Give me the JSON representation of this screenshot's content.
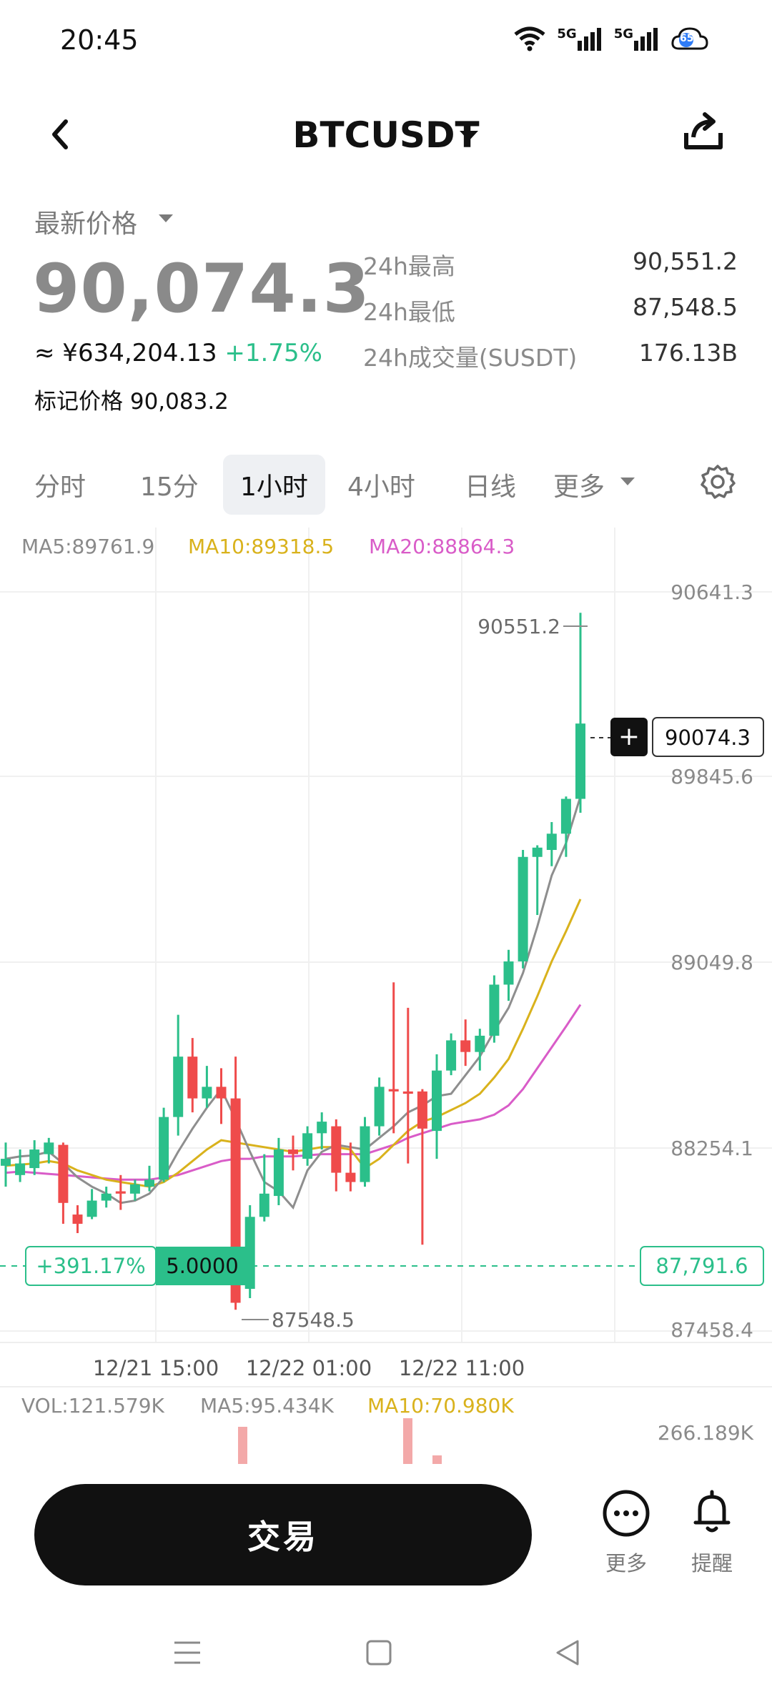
{
  "status_bar": {
    "time": "20:45",
    "net1": "5G",
    "net2": "5G",
    "cloud_badge": "65"
  },
  "header": {
    "title": "BTCUSDT"
  },
  "price": {
    "latest_label": "最新价格",
    "last_price": "90,074.3",
    "cny_prefix": "≈ ¥",
    "cny_value": "634,204.13",
    "change_pct": "+1.75%",
    "mark_price": "标记价格 90,083.2",
    "stats": [
      {
        "label": "24h最高",
        "value": "90,551.2"
      },
      {
        "label": "24h最低",
        "value": "87,548.5"
      },
      {
        "label": "24h成交量(SUSDT)",
        "value": "176.13B"
      }
    ]
  },
  "interval_tabs": [
    {
      "label": "分时"
    },
    {
      "label": "15分"
    },
    {
      "label": "1小时",
      "active": true
    },
    {
      "label": "4小时"
    },
    {
      "label": "日线"
    },
    {
      "label": "更多"
    }
  ],
  "indicators": {
    "ma5": "MA5:89761.9",
    "ma10": "MA10:89318.5",
    "ma20": "MA20:88864.3"
  },
  "chart_labels": {
    "y_ticks": [
      "90641.3",
      "89845.6",
      "89049.8",
      "88254.1",
      "87458.4"
    ],
    "high_label": "90551.2",
    "low_label": "87548.5",
    "last_tag": "90074.3",
    "position_pnl": "+391.17%",
    "position_size": "5.0000",
    "entry_price": "87,791.6",
    "x_ticks": [
      "12/21 15:00",
      "12/22 01:00",
      "12/22 11:00"
    ],
    "vol_label": "VOL:121.579K",
    "vol_ma5": "MA5:95.434K",
    "vol_ma10": "MA10:70.980K",
    "vol_axis": "266.189K"
  },
  "colors": {
    "up": "#2bbf8a",
    "down": "#ef4b4b",
    "ma5": "#8e8e8e",
    "ma10": "#d9b21c",
    "ma20": "#d95cc8"
  },
  "chart_data": {
    "type": "candlestick",
    "y_range": [
      87458.4,
      90641.3
    ],
    "x_ticks": [
      "12/21 15:00",
      "12/22 01:00",
      "12/22 11:00"
    ],
    "candles": [
      {
        "o": 88170,
        "h": 88270,
        "c": 88200,
        "l": 88080
      },
      {
        "o": 88130,
        "h": 88240,
        "c": 88180,
        "l": 88100
      },
      {
        "o": 88160,
        "h": 88280,
        "c": 88240,
        "l": 88130
      },
      {
        "o": 88220,
        "h": 88290,
        "c": 88270,
        "l": 88180
      },
      {
        "o": 88260,
        "h": 88270,
        "c": 88010,
        "l": 87920
      },
      {
        "o": 87960,
        "h": 88000,
        "c": 87920,
        "l": 87880
      },
      {
        "o": 87950,
        "h": 88070,
        "c": 88020,
        "l": 87940
      },
      {
        "o": 88020,
        "h": 88080,
        "c": 88050,
        "l": 87990
      },
      {
        "o": 88060,
        "h": 88130,
        "c": 88050,
        "l": 87980
      },
      {
        "o": 88050,
        "h": 88110,
        "c": 88090,
        "l": 88020
      },
      {
        "o": 88080,
        "h": 88170,
        "c": 88110,
        "l": 88060
      },
      {
        "o": 88110,
        "h": 88420,
        "c": 88380,
        "l": 88100
      },
      {
        "o": 88380,
        "h": 88820,
        "c": 88640,
        "l": 88300
      },
      {
        "o": 88640,
        "h": 88720,
        "c": 88460,
        "l": 88400
      },
      {
        "o": 88460,
        "h": 88600,
        "c": 88510,
        "l": 88420
      },
      {
        "o": 88510,
        "h": 88590,
        "c": 88460,
        "l": 88350
      },
      {
        "o": 88460,
        "h": 88640,
        "c": 87580,
        "l": 87550
      },
      {
        "o": 87640,
        "h": 88000,
        "c": 87950,
        "l": 87600
      },
      {
        "o": 87950,
        "h": 88220,
        "c": 88050,
        "l": 87930
      },
      {
        "o": 88040,
        "h": 88290,
        "c": 88240,
        "l": 88000
      },
      {
        "o": 88240,
        "h": 88300,
        "c": 88220,
        "l": 88150
      },
      {
        "o": 88200,
        "h": 88340,
        "c": 88310,
        "l": 88170
      },
      {
        "o": 88310,
        "h": 88400,
        "c": 88360,
        "l": 88240
      },
      {
        "o": 88340,
        "h": 88370,
        "c": 88140,
        "l": 88060
      },
      {
        "o": 88140,
        "h": 88270,
        "c": 88100,
        "l": 88060
      },
      {
        "o": 88100,
        "h": 88380,
        "c": 88340,
        "l": 88080
      },
      {
        "o": 88340,
        "h": 88550,
        "c": 88510,
        "l": 88300
      },
      {
        "o": 88500,
        "h": 88960,
        "c": 88490,
        "l": 88310
      },
      {
        "o": 88490,
        "h": 88850,
        "c": 88480,
        "l": 88180
      },
      {
        "o": 88490,
        "h": 88500,
        "c": 88330,
        "l": 87830
      },
      {
        "o": 88320,
        "h": 88650,
        "c": 88580,
        "l": 88200
      },
      {
        "o": 88580,
        "h": 88740,
        "c": 88710,
        "l": 88560
      },
      {
        "o": 88710,
        "h": 88800,
        "c": 88660,
        "l": 88600
      },
      {
        "o": 88660,
        "h": 88760,
        "c": 88730,
        "l": 88580
      },
      {
        "o": 88730,
        "h": 88990,
        "c": 88950,
        "l": 88700
      },
      {
        "o": 88950,
        "h": 89100,
        "c": 89050,
        "l": 88880
      },
      {
        "o": 89050,
        "h": 89530,
        "c": 89500,
        "l": 89020
      },
      {
        "o": 89500,
        "h": 89550,
        "c": 89540,
        "l": 89250
      },
      {
        "o": 89530,
        "h": 89650,
        "c": 89600,
        "l": 89460
      },
      {
        "o": 89600,
        "h": 89760,
        "c": 89750,
        "l": 89500
      },
      {
        "o": 89750,
        "h": 90551.2,
        "c": 90074.3,
        "l": 89690
      }
    ],
    "low_marker": 87548.5,
    "high_marker": 90551.2,
    "last_price": 90074.3,
    "entry_price": 87791.6,
    "ma5": [
      88200,
      88210,
      88215,
      88230,
      88180,
      88120,
      88080,
      88050,
      88010,
      88020,
      88050,
      88120,
      88230,
      88330,
      88420,
      88500,
      88370,
      88230,
      88100,
      88060,
      87990,
      88150,
      88230,
      88260,
      88250,
      88240,
      88290,
      88340,
      88400,
      88430,
      88470,
      88480,
      88560,
      88640,
      88750,
      88850,
      89000,
      89200,
      89420,
      89560,
      89760
    ],
    "ma10": [
      88170,
      88175,
      88180,
      88190,
      88180,
      88150,
      88130,
      88110,
      88100,
      88090,
      88080,
      88100,
      88140,
      88190,
      88240,
      88280,
      88270,
      88260,
      88250,
      88240,
      88230,
      88240,
      88250,
      88250,
      88240,
      88160,
      88200,
      88260,
      88320,
      88360,
      88380,
      88410,
      88440,
      88480,
      88550,
      88630,
      88760,
      88900,
      89050,
      89180,
      89318
    ],
    "ma20": [
      88140,
      88145,
      88140,
      88135,
      88130,
      88125,
      88120,
      88115,
      88110,
      88110,
      88110,
      88120,
      88130,
      88150,
      88170,
      88190,
      88200,
      88200,
      88210,
      88210,
      88210,
      88215,
      88220,
      88220,
      88220,
      88220,
      88240,
      88260,
      88290,
      88310,
      88330,
      88350,
      88360,
      88370,
      88390,
      88430,
      88500,
      88590,
      88680,
      88770,
      88864
    ]
  }
}
